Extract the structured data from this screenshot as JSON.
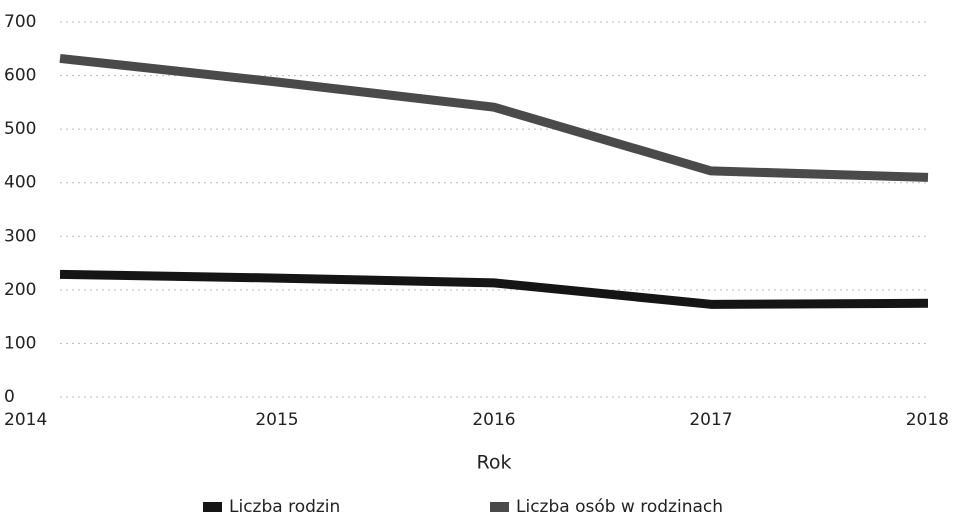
{
  "chart_data": {
    "type": "line",
    "x_label": "Rok",
    "categories": [
      "2014",
      "2015",
      "2016",
      "2017",
      "2018"
    ],
    "series": [
      {
        "name": "Liczba rodzin",
        "color": "#151515",
        "values": [
          229,
          222,
          213,
          173,
          175
        ]
      },
      {
        "name": "Liczba osób w rodzinach",
        "color": "#4a4a4a",
        "values": [
          632,
          588,
          541,
          422,
          410
        ]
      }
    ],
    "ylim": [
      0,
      700
    ],
    "yticks": [
      0,
      100,
      200,
      300,
      400,
      500,
      600,
      700
    ],
    "grid": true,
    "legend": "bottom"
  }
}
